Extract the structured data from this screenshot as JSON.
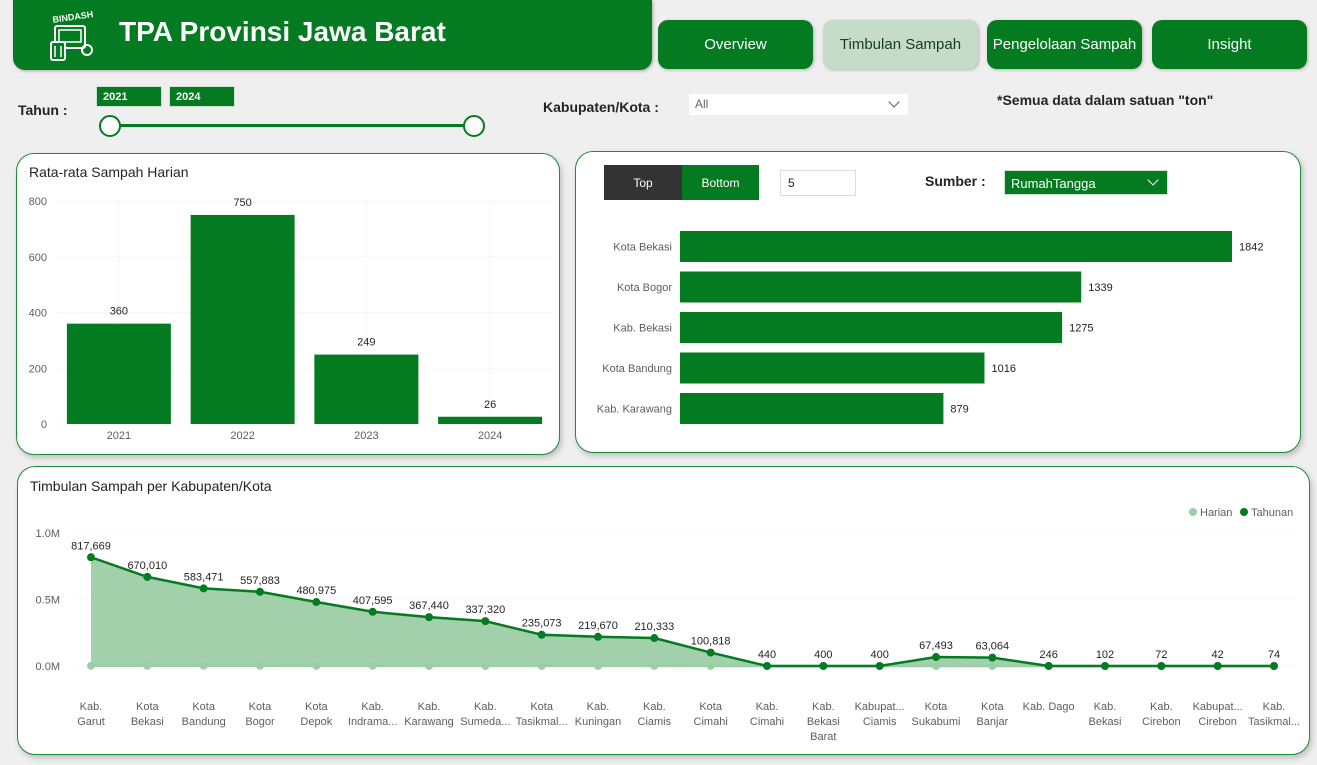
{
  "header": {
    "logo_text": "BINDASH",
    "title": "TPA Provinsi Jawa Barat"
  },
  "nav": [
    {
      "label": "Overview",
      "active": false
    },
    {
      "label": "Timbulan Sampah",
      "active": true
    },
    {
      "label": "Pengelolaan Sampah",
      "active": false
    },
    {
      "label": "Insight",
      "active": false
    }
  ],
  "filters": {
    "tahun_label": "Tahun :",
    "year_start": "2021",
    "year_end": "2024",
    "kabupaten_label": "Kabupaten/Kota :",
    "kabupaten_value": "All",
    "note": "*Semua data dalam satuan \"ton\""
  },
  "colors": {
    "primary": "#047a21",
    "light": "#9ccea6",
    "active_nav": "#c4dcc9"
  },
  "avg_card": {
    "title": "Rata-rata Sampah Harian"
  },
  "top_card": {
    "toggle_top": "Top",
    "toggle_bottom": "Bottom",
    "count_value": "5",
    "sumber_label": "Sumber :",
    "sumber_value": "RumahTangga"
  },
  "line_card": {
    "title": "Timbulan Sampah per Kabupaten/Kota"
  },
  "chart_data": [
    {
      "type": "bar",
      "title": "Rata-rata Sampah Harian",
      "categories": [
        "2021",
        "2022",
        "2023",
        "2024"
      ],
      "values": [
        360,
        750,
        249,
        26
      ],
      "ylim": [
        0,
        800
      ],
      "yticks": [
        0,
        200,
        400,
        600,
        800
      ]
    },
    {
      "type": "bar",
      "orientation": "horizontal",
      "categories": [
        "Kota Bekasi",
        "Kota Bogor",
        "Kab. Bekasi",
        "Kota Bandung",
        "Kab. Karawang"
      ],
      "values": [
        1842,
        1339,
        1275,
        1016,
        879
      ]
    },
    {
      "type": "area",
      "title": "Timbulan Sampah per Kabupaten/Kota",
      "categories": [
        [
          "Kab.",
          "Garut"
        ],
        [
          "Kota",
          "Bekasi"
        ],
        [
          "Kota",
          "Bandung"
        ],
        [
          "Kota",
          "Bogor"
        ],
        [
          "Kota",
          "Depok"
        ],
        [
          "Kab.",
          "Indrama..."
        ],
        [
          "Kab.",
          "Karawang"
        ],
        [
          "Kab.",
          "Sumeda..."
        ],
        [
          "Kota",
          "Tasikmal..."
        ],
        [
          "Kab.",
          "Kuningan"
        ],
        [
          "Kab.",
          "Ciamis"
        ],
        [
          "Kota",
          "Cimahi"
        ],
        [
          "Kab.",
          "Cimahi"
        ],
        [
          "Kab.",
          "Bekasi",
          "Barat"
        ],
        [
          "Kabupat...",
          "Ciamis"
        ],
        [
          "Kota",
          "Sukabumi"
        ],
        [
          "Kota",
          "Banjar"
        ],
        [
          "Kab. Dago"
        ],
        [
          "Kab.",
          "Bekasi"
        ],
        [
          "Kab.",
          "Cirebon"
        ],
        [
          "Kabupat...",
          "Cirebon"
        ],
        [
          "Kab.",
          "Tasikmal..."
        ]
      ],
      "series": [
        {
          "name": "Harian",
          "color": "#9ccea6",
          "values": [
            2240,
            1836,
            1599,
            1528,
            1318,
            1117,
            1007,
            924,
            644,
            602,
            576,
            276,
            1,
            1,
            1,
            185,
            173,
            1,
            0,
            0,
            0,
            0
          ]
        },
        {
          "name": "Tahunan",
          "color": "#047a21",
          "values": [
            817669,
            670010,
            583471,
            557883,
            480975,
            407595,
            367440,
            337320,
            235073,
            219670,
            210333,
            100818,
            440,
            400,
            400,
            67493,
            63064,
            246,
            102,
            72,
            42,
            74
          ]
        }
      ],
      "labels": [
        "817,669",
        "670,010",
        "583,471",
        "557,883",
        "480,975",
        "407,595",
        "367,440",
        "337,320",
        "235,073",
        "219,670",
        "210,333",
        "100,818",
        "440",
        "400",
        "400",
        "67,493",
        "63,064",
        "246",
        "102",
        "72",
        "42",
        "74"
      ],
      "yticks": [
        "0.0M",
        "0.5M",
        "1.0M"
      ],
      "ylim": [
        0,
        1000000
      ]
    }
  ]
}
